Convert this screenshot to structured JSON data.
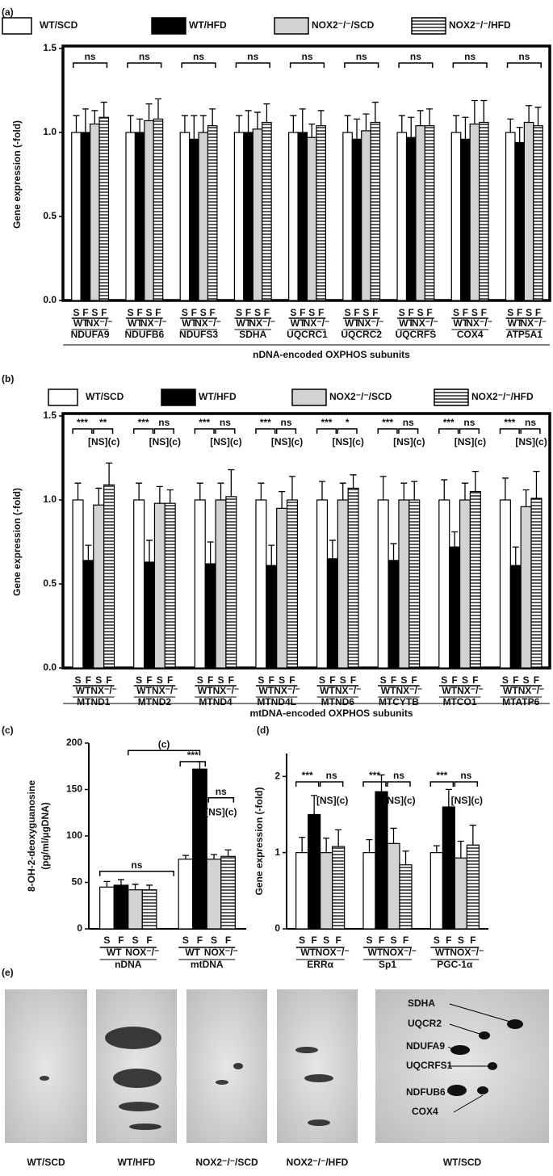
{
  "chart_data": [
    {
      "type": "bar",
      "panel_label": "(a)",
      "ylabel": "Gene expression (-fold)",
      "xlabel": "nDNA-encoded OXPHOS subunits",
      "categories": [
        "NDUFA9",
        "NDUFB6",
        "NDUFS3",
        "SDHA",
        "UQCRC1",
        "UQCRC2",
        "UQCRFS",
        "COX4",
        "ATP5A1"
      ],
      "subgroups": [
        "S",
        "F",
        "S",
        "F"
      ],
      "genotypes": [
        "WT",
        "NX⁻/⁻"
      ],
      "series": [
        {
          "name": "WT/SCD",
          "color": "#ffffff",
          "values": [
            1.0,
            1.0,
            1.0,
            1.0,
            1.0,
            1.0,
            1.0,
            1.0,
            1.0
          ],
          "errors": [
            0.1,
            0.1,
            0.1,
            0.1,
            0.1,
            0.1,
            0.1,
            0.1,
            0.08
          ]
        },
        {
          "name": "WT/HFD",
          "color": "#000000",
          "values": [
            1.0,
            1.0,
            0.96,
            1.0,
            1.0,
            0.96,
            0.97,
            0.96,
            0.94
          ],
          "errors": [
            0.14,
            0.08,
            0.14,
            0.13,
            0.14,
            0.12,
            0.12,
            0.13,
            0.09
          ]
        },
        {
          "name": "NOX2⁻/⁻/SCD",
          "color": "#d3d3d3",
          "values": [
            1.05,
            1.07,
            1.0,
            1.02,
            0.97,
            1.01,
            1.04,
            1.05,
            1.06
          ],
          "errors": [
            0.08,
            0.1,
            0.1,
            0.1,
            0.08,
            0.1,
            0.09,
            0.14,
            0.1
          ]
        },
        {
          "name": "NOX2⁻/⁻/HFD",
          "color": "#ffffff",
          "hatch": "horizontal",
          "values": [
            1.09,
            1.08,
            1.04,
            1.06,
            1.04,
            1.06,
            1.04,
            1.06,
            1.04
          ],
          "errors": [
            0.09,
            0.12,
            0.1,
            0.11,
            0.09,
            0.12,
            0.1,
            0.13,
            0.11
          ]
        }
      ],
      "ylim": [
        0,
        1.5
      ],
      "yticks": [
        {
          "value": 0,
          "label": "0.0"
        },
        {
          "value": 0.5,
          "label": "0.5"
        },
        {
          "value": 1,
          "label": "1.0"
        },
        {
          "value": 1.5,
          "label": "1.5"
        }
      ],
      "legend": "top",
      "significance": [
        "ns",
        "ns",
        "ns",
        "ns",
        "ns",
        "ns",
        "ns",
        "ns",
        "ns"
      ]
    },
    {
      "type": "bar",
      "panel_label": "(b)",
      "ylabel": "Gene expression (-fold)",
      "xlabel": "mtDNA-encoded OXPHOS subunits",
      "categories": [
        "MTND1",
        "MTND2",
        "MTND4",
        "MTND4L",
        "MTND6",
        "MTCYTB",
        "MTCO1",
        "MTATP6"
      ],
      "subgroups": [
        "S",
        "F",
        "S",
        "F"
      ],
      "genotypes": [
        "WT",
        "NX⁻/⁻"
      ],
      "series": [
        {
          "name": "WT/SCD",
          "color": "#ffffff",
          "values": [
            1.0,
            1.0,
            1.0,
            1.0,
            1.0,
            1.0,
            1.0,
            1.0
          ],
          "errors": [
            0.1,
            0.1,
            0.1,
            0.1,
            0.11,
            0.14,
            0.12,
            0.13
          ]
        },
        {
          "name": "WT/HFD",
          "color": "#000000",
          "values": [
            0.64,
            0.63,
            0.62,
            0.61,
            0.65,
            0.64,
            0.72,
            0.61
          ],
          "errors": [
            0.09,
            0.13,
            0.13,
            0.12,
            0.11,
            0.1,
            0.09,
            0.11
          ]
        },
        {
          "name": "NOX2⁻/⁻/SCD",
          "color": "#d3d3d3",
          "values": [
            0.97,
            0.98,
            1.0,
            0.95,
            1.0,
            1.0,
            1.0,
            0.96
          ],
          "errors": [
            0.1,
            0.1,
            0.1,
            0.1,
            0.1,
            0.1,
            0.1,
            0.1
          ]
        },
        {
          "name": "NOX2⁻/⁻/HFD",
          "color": "#ffffff",
          "hatch": "horizontal",
          "values": [
            1.09,
            0.98,
            1.02,
            1.0,
            1.07,
            1.0,
            1.05,
            1.01
          ],
          "errors": [
            0.13,
            0.08,
            0.16,
            0.14,
            0.08,
            0.11,
            0.12,
            0.16
          ]
        }
      ],
      "ylim": [
        0,
        1.5
      ],
      "yticks": [
        {
          "value": 0,
          "label": "0.0"
        },
        {
          "value": 0.5,
          "label": "0.5"
        },
        {
          "value": 1,
          "label": "1.0"
        },
        {
          "value": 1.5,
          "label": "1.5"
        }
      ],
      "legend": "top",
      "significance": [
        [
          "***",
          "**"
        ],
        [
          "***",
          "ns"
        ],
        [
          "***",
          "ns"
        ],
        [
          "***",
          "ns"
        ],
        [
          "***",
          "*"
        ],
        [
          "***",
          "ns"
        ],
        [
          "***",
          "ns"
        ],
        [
          "***",
          "ns"
        ]
      ],
      "note": "[NS](c)"
    },
    {
      "type": "bar",
      "panel_label": "(c)",
      "ylabel": "8-OH-2-deoxyguanosine",
      "ylabel_unit": "(pg/ml/µgDNA)",
      "categories": [
        "nDNA",
        "mtDNA"
      ],
      "subgroups": [
        "S",
        "F",
        "S",
        "F"
      ],
      "genotypes": [
        "WT",
        "NOX⁻/⁻"
      ],
      "series": [
        {
          "name": "WT/SCD",
          "color": "#ffffff",
          "values": [
            45,
            75
          ],
          "errors": [
            6,
            4
          ]
        },
        {
          "name": "WT/HFD",
          "color": "#000000",
          "values": [
            47,
            172
          ],
          "errors": [
            6,
            8
          ]
        },
        {
          "name": "NOX2⁻/⁻/SCD",
          "color": "#d3d3d3",
          "values": [
            42,
            75
          ],
          "errors": [
            6,
            5
          ]
        },
        {
          "name": "NOX2⁻/⁻/HFD",
          "color": "#ffffff",
          "hatch": "horizontal",
          "values": [
            42,
            78
          ],
          "errors": [
            5,
            7
          ]
        }
      ],
      "ylim": [
        0,
        200
      ],
      "yticks": [
        0,
        50,
        100,
        150,
        200
      ],
      "annotations": [
        "ns",
        "(c)",
        "***",
        "ns",
        "[NS](c)"
      ]
    },
    {
      "type": "bar",
      "panel_label": "(d)",
      "ylabel": "Gene expression (-fold)",
      "categories": [
        "ERRα",
        "Sp1",
        "PGC-1α"
      ],
      "subgroups": [
        "S",
        "F",
        "S",
        "F"
      ],
      "genotypes": [
        "WT",
        "NOX⁻/⁻"
      ],
      "series": [
        {
          "name": "WT/SCD",
          "color": "#ffffff",
          "values": [
            1.0,
            1.0,
            1.0
          ],
          "errors": [
            0.2,
            0.17,
            0.09
          ]
        },
        {
          "name": "WT/HFD",
          "color": "#000000",
          "values": [
            1.5,
            1.8,
            1.6
          ],
          "errors": [
            0.25,
            0.22,
            0.23
          ]
        },
        {
          "name": "NOX2⁻/⁻/SCD",
          "color": "#d3d3d3",
          "values": [
            1.0,
            1.12,
            0.93
          ],
          "errors": [
            0.19,
            0.2,
            0.22
          ]
        },
        {
          "name": "NOX2⁻/⁻/HFD",
          "color": "#ffffff",
          "hatch": "horizontal",
          "values": [
            1.08,
            0.84,
            1.1
          ],
          "errors": [
            0.22,
            0.18,
            0.26
          ]
        }
      ],
      "ylim": [
        0,
        2.3
      ],
      "yticks": [
        0,
        1,
        2
      ],
      "significance": [
        [
          "***",
          "ns"
        ],
        [
          "***",
          "ns"
        ],
        [
          "***",
          "ns"
        ]
      ],
      "note": "[NS](c)"
    }
  ],
  "blots": {
    "panel_label": "(e)",
    "lanes": [
      "WT/SCD",
      "WT/HFD",
      "NOX2⁻/⁻/SCD",
      "NOX2⁻/⁻/HFD",
      "WT/SCD"
    ],
    "spots": [
      "SDHA",
      "UQCR2",
      "NDUFA9",
      "UQCRFS1",
      "NDFUB6",
      "COX4"
    ]
  }
}
